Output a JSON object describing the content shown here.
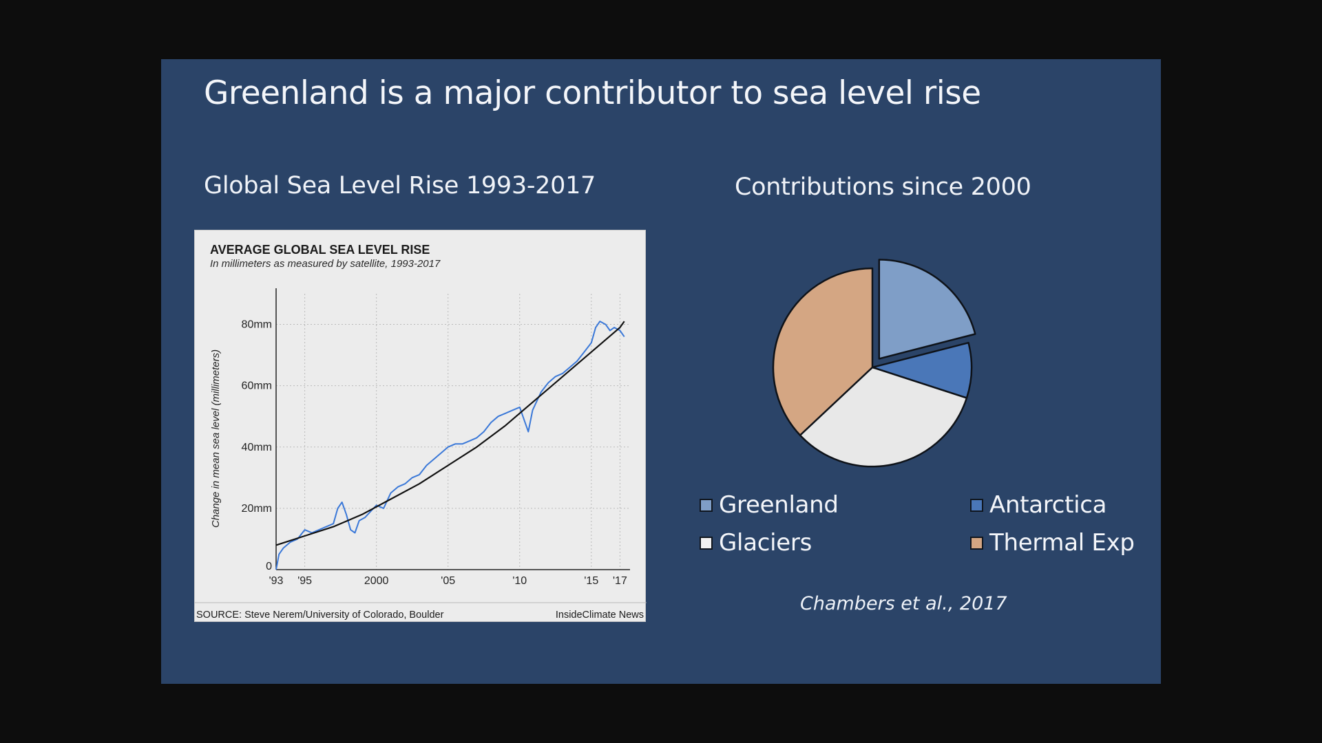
{
  "slide": {
    "title": "Greenland is a major contributor to sea level rise",
    "left_subtitle": "Global Sea Level Rise 1993-2017",
    "right_subtitle": "Contributions since 2000",
    "citation": "Chambers et al., 2017",
    "background_color": "#2b4468"
  },
  "line_chart": {
    "title": "AVERAGE GLOBAL SEA LEVEL RISE",
    "subtitle": "In millimeters as measured by satellite, 1993-2017",
    "source": "SOURCE: Steve Nerem/University of Colorado, Boulder",
    "credit": "InsideClimate News"
  },
  "legend": {
    "greenland": "Greenland",
    "antarctica": "Antarctica",
    "glaciers": "Glaciers",
    "thermal": "Thermal Exp"
  },
  "chart_data": [
    {
      "type": "line",
      "title": "AVERAGE GLOBAL SEA LEVEL RISE",
      "subtitle": "In millimeters as measured by satellite, 1993-2017",
      "ylabel": "Change in mean sea level (millimeters)",
      "xlabel": "",
      "xlim": [
        1993,
        2017.7
      ],
      "ylim": [
        0,
        90
      ],
      "grid": true,
      "x_ticks": [
        1993,
        1995,
        2000,
        2005,
        2010,
        2015,
        2017
      ],
      "x_tick_labels": [
        "'93",
        "'95",
        "2000",
        "'05",
        "'10",
        "'15",
        "'17"
      ],
      "y_ticks": [
        0,
        20,
        40,
        60,
        80
      ],
      "y_tick_labels": [
        "0",
        "20mm",
        "40mm",
        "60mm",
        "80mm"
      ],
      "series": [
        {
          "name": "",
          "color": "#3a78d8",
          "x": [
            1993.0,
            1993.2,
            1993.5,
            1994.0,
            1994.5,
            1995.0,
            1995.5,
            1996.0,
            1996.5,
            1997.0,
            1997.3,
            1997.6,
            1997.9,
            1998.2,
            1998.5,
            1998.8,
            1999.2,
            1999.6,
            2000.0,
            2000.5,
            2001.0,
            2001.5,
            2002.0,
            2002.5,
            2003.0,
            2003.5,
            2004.0,
            2004.5,
            2005.0,
            2005.5,
            2006.0,
            2006.5,
            2007.0,
            2007.5,
            2008.0,
            2008.5,
            2009.0,
            2009.5,
            2010.0,
            2010.3,
            2010.6,
            2010.9,
            2011.2,
            2011.5,
            2012.0,
            2012.5,
            2013.0,
            2013.5,
            2014.0,
            2014.5,
            2015.0,
            2015.3,
            2015.6,
            2016.0,
            2016.3,
            2016.6,
            2017.0,
            2017.3
          ],
          "values": [
            0,
            5,
            7,
            9,
            10,
            13,
            12,
            13,
            14,
            15,
            20,
            22,
            18,
            13,
            12,
            16,
            17,
            19,
            21,
            20,
            25,
            27,
            28,
            30,
            31,
            34,
            36,
            38,
            40,
            41,
            41,
            42,
            43,
            45,
            48,
            50,
            51,
            52,
            53,
            49,
            45,
            52,
            55,
            58,
            61,
            63,
            64,
            66,
            68,
            71,
            74,
            79,
            81,
            80,
            78,
            79,
            78,
            76
          ]
        },
        {
          "name": "",
          "color": "#111111",
          "x": [
            1993.0,
            1995.0,
            1997.0,
            1999.0,
            2001.0,
            2003.0,
            2005.0,
            2007.0,
            2009.0,
            2011.0,
            2013.0,
            2015.0,
            2017.0,
            2017.3
          ],
          "values": [
            8,
            11,
            14,
            18,
            23,
            28,
            34,
            40,
            47,
            55,
            63,
            71,
            79,
            81
          ]
        }
      ]
    },
    {
      "type": "pie",
      "title": "Contributions since 2000",
      "categories": [
        "Greenland",
        "Antarctica",
        "Glaciers",
        "Thermal Exp"
      ],
      "values": [
        21,
        9,
        33,
        37
      ],
      "colors": [
        "#7f9ec7",
        "#4a77b8",
        "#e8e8e8",
        "#d4a683"
      ],
      "exploded": [
        "Greenland"
      ]
    }
  ]
}
